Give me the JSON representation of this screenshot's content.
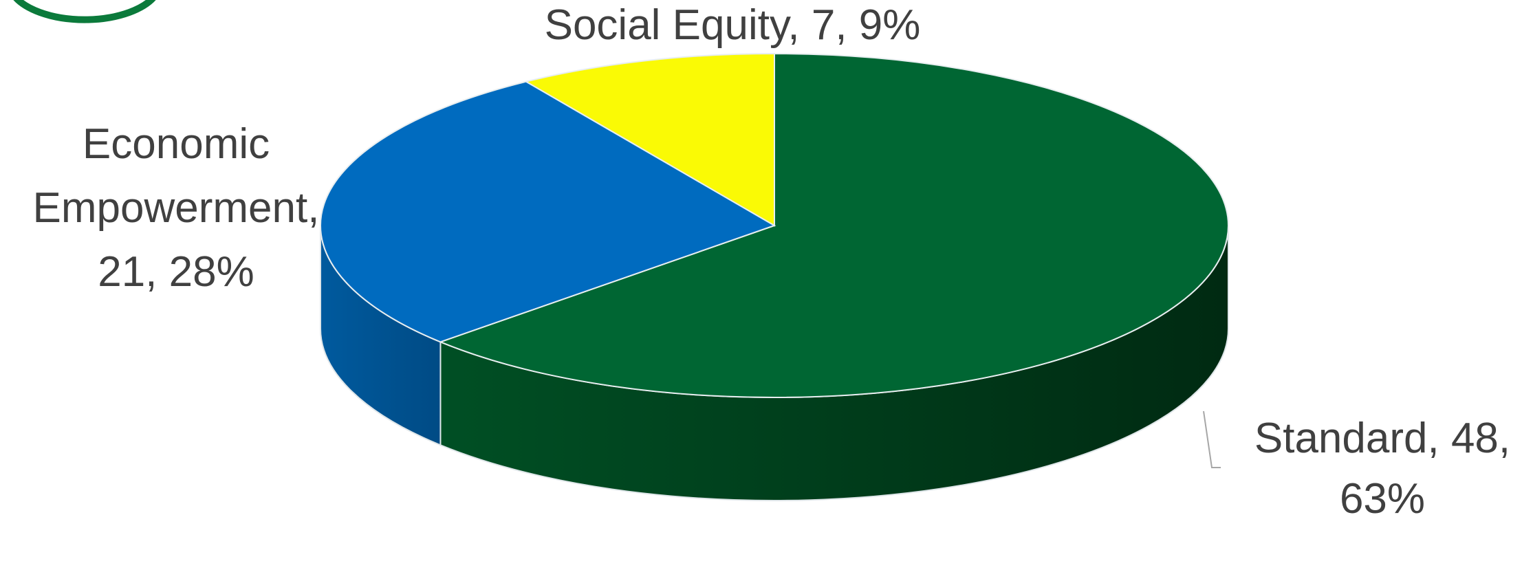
{
  "chart_data": {
    "type": "pie",
    "style": "3d",
    "title": "",
    "labels_show": [
      "category",
      "value",
      "percent"
    ],
    "slices": [
      {
        "label": "Standard",
        "value": 48,
        "percent": "63%",
        "color": "#006633",
        "label_lines": [
          "Standard, 48,",
          "63%"
        ]
      },
      {
        "label": "Economic Empowerment",
        "value": 21,
        "percent": "28%",
        "color": "#006BBF",
        "label_lines": [
          "Economic",
          "Empowerment,",
          "21, 28%"
        ]
      },
      {
        "label": "Social Equity",
        "value": 7,
        "percent": "9%",
        "color": "#FAFA05",
        "label_lines": [
          "Social Equity, 7, 9%"
        ]
      }
    ],
    "legend": "none",
    "accent_colors": {
      "logo_ring": "#0B7A3B",
      "label_text": "#404040"
    }
  },
  "decor": {
    "logo_ring": "partial green circle (cropped, top-left)"
  }
}
